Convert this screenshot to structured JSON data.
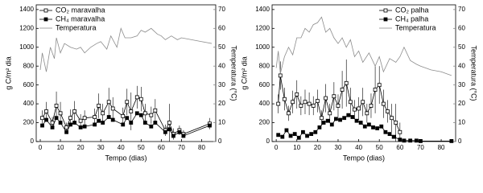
{
  "chart_data": [
    {
      "type": "line",
      "xlabel": "Tempo (dias)",
      "ylabel": "g C/m² dia",
      "y2label": "Temperatura (°C)",
      "xlim": [
        -2,
        87
      ],
      "xticks": [
        0,
        10,
        20,
        30,
        40,
        50,
        60,
        70,
        80
      ],
      "ylim": [
        0,
        1450
      ],
      "yticks": [
        0,
        200,
        400,
        600,
        800,
        1000,
        1200,
        1400
      ],
      "y2lim": [
        0,
        72.5
      ],
      "y2ticks": [
        0,
        10,
        20,
        30,
        40,
        50,
        60,
        70
      ],
      "legend": "upper left",
      "series": [
        {
          "name": "CO₂ maravalha",
          "color": "#000000",
          "marker": "open-square",
          "x": [
            1,
            3,
            6,
            8,
            10,
            13,
            15,
            17,
            20,
            22,
            27,
            29,
            31,
            34,
            36,
            41,
            43,
            45,
            48,
            50,
            52,
            55,
            57,
            62,
            64,
            66,
            69,
            71,
            84
          ],
          "values": [
            250,
            320,
            200,
            380,
            300,
            150,
            250,
            320,
            220,
            250,
            260,
            380,
            300,
            420,
            350,
            270,
            420,
            320,
            470,
            450,
            300,
            280,
            330,
            120,
            200,
            80,
            120,
            80,
            190
          ],
          "errors": [
            80,
            100,
            60,
            150,
            120,
            50,
            90,
            110,
            70,
            80,
            90,
            130,
            100,
            150,
            120,
            90,
            140,
            200,
            120,
            130,
            100,
            90,
            120,
            60,
            200,
            60,
            50,
            40,
            60
          ]
        },
        {
          "name": "CH₄ maravalha",
          "color": "#000000",
          "marker": "filled-square",
          "x": [
            1,
            3,
            6,
            8,
            10,
            13,
            15,
            17,
            20,
            22,
            27,
            29,
            31,
            34,
            36,
            41,
            43,
            45,
            48,
            50,
            52,
            55,
            57,
            62,
            64,
            66,
            69,
            71,
            84
          ],
          "values": [
            170,
            230,
            150,
            250,
            200,
            100,
            180,
            200,
            150,
            160,
            180,
            220,
            200,
            260,
            230,
            180,
            250,
            200,
            300,
            280,
            200,
            160,
            200,
            100,
            130,
            60,
            100,
            60,
            170
          ]
        },
        {
          "name": "Temperatura",
          "color": "#8c8c8c",
          "marker": "none",
          "axis": "y2",
          "x": [
            0,
            1,
            2,
            3,
            5,
            7,
            8,
            10,
            12,
            15,
            18,
            20,
            22,
            25,
            28,
            30,
            33,
            35,
            38,
            40,
            42,
            45,
            48,
            50,
            52,
            55,
            58,
            60,
            62,
            65,
            68,
            70,
            75,
            80,
            85
          ],
          "values": [
            38,
            47,
            42,
            37,
            50,
            44,
            55,
            47,
            52,
            50,
            49,
            50,
            47,
            50,
            52,
            53,
            49,
            56,
            50,
            60,
            55,
            55,
            56,
            59,
            58,
            60,
            57,
            56,
            54,
            56,
            54,
            55,
            54,
            53,
            52
          ]
        }
      ]
    },
    {
      "type": "line",
      "xlabel": "Tempo (dias)",
      "ylabel": "g C/m² dia",
      "y2label": "Temperatura (°C)",
      "xlim": [
        -2,
        87
      ],
      "xticks": [
        0,
        10,
        20,
        30,
        40,
        50,
        60,
        70,
        80
      ],
      "ylim": [
        0,
        1450
      ],
      "yticks": [
        0,
        200,
        400,
        600,
        800,
        1000,
        1200,
        1400
      ],
      "y2lim": [
        0,
        72.5
      ],
      "y2ticks": [
        0,
        10,
        20,
        30,
        40,
        50,
        60,
        70
      ],
      "legend": "upper right",
      "series": [
        {
          "name": "CO₂ palha",
          "color": "#000000",
          "marker": "open-square",
          "x": [
            1,
            2,
            4,
            6,
            8,
            10,
            12,
            14,
            16,
            18,
            20,
            22,
            24,
            26,
            28,
            30,
            32,
            34,
            36,
            38,
            40,
            42,
            44,
            46,
            48,
            50,
            52,
            54,
            56,
            58,
            60
          ],
          "values": [
            400,
            700,
            450,
            300,
            420,
            500,
            380,
            420,
            400,
            380,
            430,
            250,
            460,
            300,
            480,
            380,
            550,
            620,
            420,
            340,
            350,
            420,
            300,
            380,
            550,
            600,
            400,
            320,
            250,
            200,
            100
          ],
          "errors": [
            100,
            150,
            120,
            80,
            120,
            150,
            100,
            130,
            120,
            100,
            120,
            80,
            150,
            100,
            150,
            120,
            200,
            250,
            150,
            100,
            120,
            150,
            100,
            130,
            250,
            200,
            150,
            120,
            150,
            200,
            100
          ]
        },
        {
          "name": "CH₄ palha",
          "color": "#000000",
          "marker": "filled-square",
          "x": [
            1,
            3,
            5,
            7,
            9,
            11,
            13,
            15,
            17,
            19,
            21,
            23,
            25,
            27,
            29,
            31,
            33,
            35,
            37,
            39,
            41,
            43,
            45,
            47,
            49,
            51,
            53,
            55,
            57,
            60,
            62,
            65,
            68,
            70,
            85
          ],
          "values": [
            70,
            50,
            120,
            60,
            80,
            40,
            100,
            60,
            80,
            100,
            150,
            200,
            220,
            180,
            240,
            230,
            250,
            280,
            260,
            220,
            200,
            160,
            180,
            150,
            140,
            160,
            100,
            80,
            50,
            20,
            10,
            10,
            10,
            5,
            5
          ]
        },
        {
          "name": "Temperatura",
          "color": "#8c8c8c",
          "marker": "none",
          "axis": "y2",
          "x": [
            0,
            1,
            2,
            4,
            6,
            8,
            10,
            12,
            14,
            16,
            18,
            20,
            22,
            24,
            26,
            28,
            30,
            32,
            34,
            36,
            38,
            40,
            42,
            45,
            48,
            50,
            52,
            55,
            58,
            60,
            62,
            65,
            68,
            70,
            75,
            80,
            85
          ],
          "values": [
            39,
            48,
            36,
            45,
            50,
            46,
            55,
            55,
            60,
            58,
            62,
            63,
            66,
            58,
            60,
            55,
            52,
            55,
            50,
            54,
            45,
            48,
            42,
            47,
            40,
            45,
            37,
            44,
            42,
            45,
            50,
            43,
            41,
            40,
            38,
            37,
            35
          ]
        }
      ]
    }
  ]
}
